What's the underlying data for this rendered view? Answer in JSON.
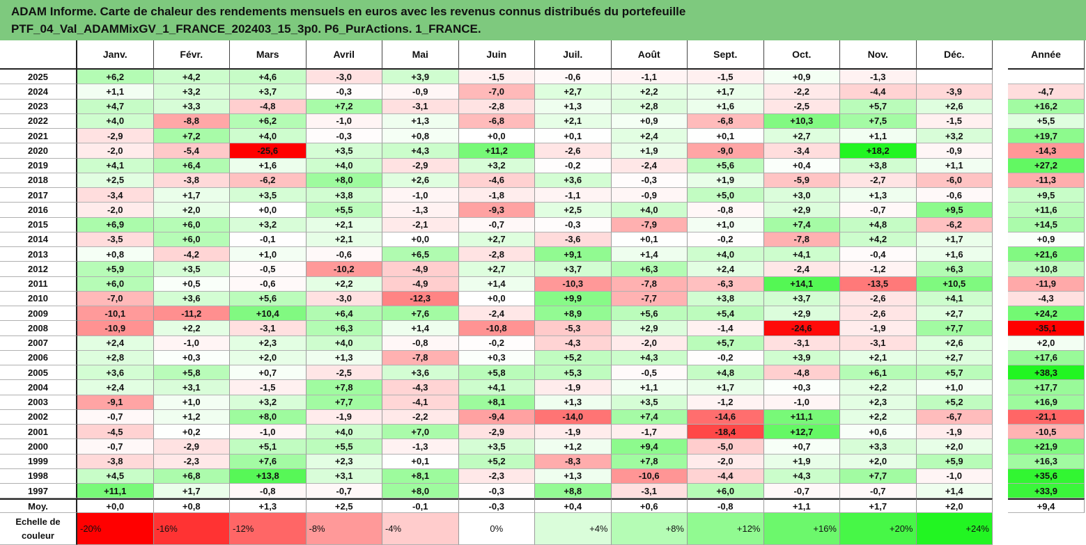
{
  "title": {
    "line1": "ADAM Informe. Carte de chaleur des rendements mensuels en euros avec les revenus connus distribués du portefeuille",
    "line2": "PTF_04_Val_ADAMMixGV_1_FRANCE_202403_15_3p0. P6_PurActions. 1_FRANCE."
  },
  "chart_data": {
    "type": "heatmap",
    "columns": [
      "Janv.",
      "Févr.",
      "Mars",
      "Avril",
      "Mai",
      "Juin",
      "Juil.",
      "Août",
      "Sept.",
      "Oct.",
      "Nov.",
      "Déc."
    ],
    "annual_label": "Année",
    "rows": [
      {
        "year": "2025",
        "values": [
          "+6,2",
          "+4,2",
          "+4,6",
          "-3,0",
          "+3,9",
          "-1,5",
          "-0,6",
          "-1,1",
          "-1,5",
          "+0,9",
          "-1,3",
          ""
        ],
        "annual": ""
      },
      {
        "year": "2024",
        "values": [
          "+1,1",
          "+3,2",
          "+3,7",
          "-0,3",
          "-0,9",
          "-7,0",
          "+2,7",
          "+2,2",
          "+1,7",
          "-2,2",
          "-4,4",
          "-3,9"
        ],
        "annual": "-4,7"
      },
      {
        "year": "2023",
        "values": [
          "+4,7",
          "+3,3",
          "-4,8",
          "+7,2",
          "-3,1",
          "-2,8",
          "+1,3",
          "+2,8",
          "+1,6",
          "-2,5",
          "+5,7",
          "+2,6"
        ],
        "annual": "+16,2"
      },
      {
        "year": "2022",
        "values": [
          "+4,0",
          "-8,8",
          "+6,2",
          "-1,0",
          "+1,3",
          "-6,8",
          "+2,1",
          "+0,9",
          "-6,8",
          "+10,3",
          "+7,5",
          "-1,5"
        ],
        "annual": "+5,5"
      },
      {
        "year": "2021",
        "values": [
          "-2,9",
          "+7,2",
          "+4,0",
          "-0,3",
          "+0,8",
          "+0,0",
          "+0,1",
          "+2,4",
          "+0,1",
          "+2,7",
          "+1,1",
          "+3,2"
        ],
        "annual": "+19,7"
      },
      {
        "year": "2020",
        "values": [
          "-2,0",
          "-5,4",
          "-25,6",
          "+3,5",
          "+4,3",
          "+11,2",
          "-2,6",
          "+1,9",
          "-9,0",
          "-3,4",
          "+18,2",
          "-0,9"
        ],
        "annual": "-14,3"
      },
      {
        "year": "2019",
        "values": [
          "+4,1",
          "+6,4",
          "+1,6",
          "+4,0",
          "-2,9",
          "+3,2",
          "-0,2",
          "-2,4",
          "+5,6",
          "+0,4",
          "+3,8",
          "+1,1"
        ],
        "annual": "+27,2"
      },
      {
        "year": "2018",
        "values": [
          "+2,5",
          "-3,8",
          "-6,2",
          "+8,0",
          "+2,6",
          "-4,6",
          "+3,6",
          "-0,3",
          "+1,9",
          "-5,9",
          "-2,7",
          "-6,0"
        ],
        "annual": "-11,3"
      },
      {
        "year": "2017",
        "values": [
          "-3,4",
          "+1,7",
          "+3,5",
          "+3,8",
          "-1,0",
          "-1,8",
          "-1,1",
          "-0,9",
          "+5,0",
          "+3,0",
          "+1,3",
          "-0,6"
        ],
        "annual": "+9,5"
      },
      {
        "year": "2016",
        "values": [
          "-2,0",
          "+2,0",
          "+0,0",
          "+5,5",
          "-1,3",
          "-9,3",
          "+2,5",
          "+4,0",
          "-0,8",
          "+2,9",
          "-0,7",
          "+9,5"
        ],
        "annual": "+11,6"
      },
      {
        "year": "2015",
        "values": [
          "+6,9",
          "+6,0",
          "+3,2",
          "+2,1",
          "-2,1",
          "-0,7",
          "-0,3",
          "-7,9",
          "+1,0",
          "+7,4",
          "+4,8",
          "-6,2"
        ],
        "annual": "+14,5"
      },
      {
        "year": "2014",
        "values": [
          "-3,5",
          "+6,0",
          "-0,1",
          "+2,1",
          "+0,0",
          "+2,7",
          "-3,6",
          "+0,1",
          "-0,2",
          "-7,8",
          "+4,2",
          "+1,7"
        ],
        "annual": "+0,9"
      },
      {
        "year": "2013",
        "values": [
          "+0,8",
          "-4,2",
          "+1,0",
          "-0,6",
          "+6,5",
          "-2,8",
          "+9,1",
          "+1,4",
          "+4,0",
          "+4,1",
          "-0,4",
          "+1,6"
        ],
        "annual": "+21,6"
      },
      {
        "year": "2012",
        "values": [
          "+5,9",
          "+3,5",
          "-0,5",
          "-10,2",
          "-4,9",
          "+2,7",
          "+3,7",
          "+6,3",
          "+2,4",
          "-2,4",
          "-1,2",
          "+6,3"
        ],
        "annual": "+10,8"
      },
      {
        "year": "2011",
        "values": [
          "+6,0",
          "+0,5",
          "-0,6",
          "+2,2",
          "-4,9",
          "+1,4",
          "-10,3",
          "-7,8",
          "-6,3",
          "+14,1",
          "-13,5",
          "+10,5"
        ],
        "annual": "-11,9"
      },
      {
        "year": "2010",
        "values": [
          "-7,0",
          "+3,6",
          "+5,6",
          "-3,0",
          "-12,3",
          "+0,0",
          "+9,9",
          "-7,7",
          "+3,8",
          "+3,7",
          "-2,6",
          "+4,1"
        ],
        "annual": "-4,3"
      },
      {
        "year": "2009",
        "values": [
          "-10,1",
          "-11,2",
          "+10,4",
          "+6,4",
          "+7,6",
          "-2,4",
          "+8,9",
          "+5,6",
          "+5,4",
          "+2,9",
          "-2,6",
          "+2,7"
        ],
        "annual": "+24,2"
      },
      {
        "year": "2008",
        "values": [
          "-10,9",
          "+2,2",
          "-3,1",
          "+6,3",
          "+1,4",
          "-10,8",
          "-5,3",
          "+2,9",
          "-1,4",
          "-24,6",
          "-1,9",
          "+7,7"
        ],
        "annual": "-35,1"
      },
      {
        "year": "2007",
        "values": [
          "+2,4",
          "-1,0",
          "+2,3",
          "+4,0",
          "-0,8",
          "-0,2",
          "-4,3",
          "-2,0",
          "+5,7",
          "-3,1",
          "-3,1",
          "+2,6"
        ],
        "annual": "+2,0"
      },
      {
        "year": "2006",
        "values": [
          "+2,8",
          "+0,3",
          "+2,0",
          "+1,3",
          "-7,8",
          "+0,3",
          "+5,2",
          "+4,3",
          "-0,2",
          "+3,9",
          "+2,1",
          "+2,7"
        ],
        "annual": "+17,6"
      },
      {
        "year": "2005",
        "values": [
          "+3,6",
          "+5,8",
          "+0,7",
          "-2,5",
          "+3,6",
          "+5,8",
          "+5,3",
          "-0,5",
          "+4,8",
          "-4,8",
          "+6,1",
          "+5,7"
        ],
        "annual": "+38,3"
      },
      {
        "year": "2004",
        "values": [
          "+2,4",
          "+3,1",
          "-1,5",
          "+7,8",
          "-4,3",
          "+4,1",
          "-1,9",
          "+1,1",
          "+1,7",
          "+0,3",
          "+2,2",
          "+1,0"
        ],
        "annual": "+17,7"
      },
      {
        "year": "2003",
        "values": [
          "-9,1",
          "+1,0",
          "+3,2",
          "+7,7",
          "-4,1",
          "+8,1",
          "+1,3",
          "+3,5",
          "-1,2",
          "-1,0",
          "+2,3",
          "+5,2"
        ],
        "annual": "+16,9"
      },
      {
        "year": "2002",
        "values": [
          "-0,7",
          "+1,2",
          "+8,0",
          "-1,9",
          "-2,2",
          "-9,4",
          "-14,0",
          "+7,4",
          "-14,6",
          "+11,1",
          "+2,2",
          "-6,7"
        ],
        "annual": "-21,1"
      },
      {
        "year": "2001",
        "values": [
          "-4,5",
          "+0,2",
          "-1,0",
          "+4,0",
          "+7,0",
          "-2,9",
          "-1,9",
          "-1,7",
          "-18,4",
          "+12,7",
          "+0,6",
          "-1,9"
        ],
        "annual": "-10,5"
      },
      {
        "year": "2000",
        "values": [
          "-0,7",
          "-2,9",
          "+5,1",
          "+5,5",
          "-1,3",
          "+3,5",
          "+1,2",
          "+9,4",
          "-5,0",
          "+0,7",
          "+3,3",
          "+2,0"
        ],
        "annual": "+21,9"
      },
      {
        "year": "1999",
        "values": [
          "-3,8",
          "-2,3",
          "+7,6",
          "+2,3",
          "+0,1",
          "+5,2",
          "-8,3",
          "+7,8",
          "-2,0",
          "+1,9",
          "+2,0",
          "+5,9"
        ],
        "annual": "+16,3"
      },
      {
        "year": "1998",
        "values": [
          "+4,5",
          "+6,8",
          "+13,8",
          "+3,1",
          "+8,1",
          "-2,3",
          "+1,3",
          "-10,6",
          "-4,4",
          "+4,3",
          "+7,7",
          "-1,0"
        ],
        "annual": "+35,6"
      },
      {
        "year": "1997",
        "values": [
          "+11,1",
          "+1,7",
          "-0,8",
          "-0,7",
          "+8,0",
          "-0,3",
          "+8,8",
          "-3,1",
          "+6,0",
          "-0,7",
          "-0,7",
          "+1,4"
        ],
        "annual": "+33,9"
      }
    ],
    "average": {
      "label": "Moy.",
      "values": [
        "+0,0",
        "+0,8",
        "+1,3",
        "+2,5",
        "-0,1",
        "-0,3",
        "+0,4",
        "+0,6",
        "-0,8",
        "+1,1",
        "+1,7",
        "+2,0"
      ],
      "annual": "+9,4"
    },
    "color_scale": {
      "label_line1": "Echelle de",
      "label_line2": "couleur",
      "steps": [
        "-20%",
        "-16%",
        "-12%",
        "-8%",
        "-4%",
        "0%",
        "+4%",
        "+8%",
        "+12%",
        "+16%",
        "+20%",
        "+24%"
      ],
      "step_values": [
        -20,
        -16,
        -12,
        -8,
        -4,
        0,
        4,
        8,
        12,
        16,
        20,
        24
      ]
    },
    "colors": {
      "negative": "#ff0000",
      "neutral": "#ffffff",
      "positive": "#22f522"
    }
  }
}
